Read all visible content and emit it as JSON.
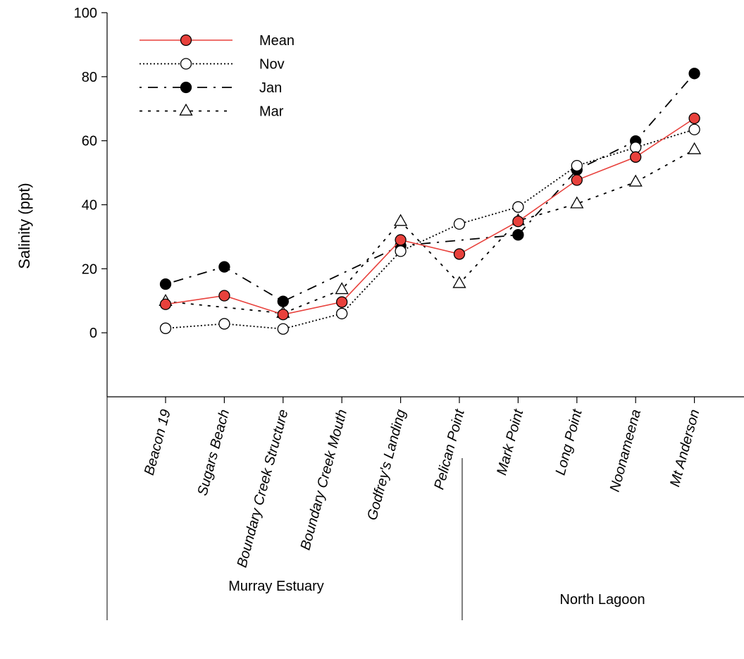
{
  "chart_data": {
    "type": "line",
    "ylabel": "Salinity (ppt)",
    "xlabel": "",
    "ylim": [
      -20,
      100
    ],
    "yticks": [
      0,
      20,
      40,
      60,
      80,
      100
    ],
    "categories": [
      "Beacon 19",
      "Sugars Beach",
      "Boundary Creek Structure",
      "Boundary Creek Mouth",
      "Godfrey's Landing",
      "Pelican Point",
      "Mark Point",
      "Long Point",
      "Noonameena",
      "Mt Anderson"
    ],
    "regions": [
      {
        "label": "Murray Estuary",
        "categories": [
          "Beacon 19",
          "Sugars Beach",
          "Boundary Creek Structure",
          "Boundary Creek Mouth",
          "Godfrey's Landing",
          "Pelican Point"
        ]
      },
      {
        "label": "North Lagoon",
        "categories": [
          "Mark Point",
          "Long Point",
          "Noonameena",
          "Mt Anderson"
        ]
      }
    ],
    "legend_position": "top-left",
    "series": [
      {
        "name": "Mean",
        "line": "solid",
        "marker": "filled-circle-red",
        "color": "#e8413c",
        "values": [
          8.9,
          11.6,
          5.7,
          9.6,
          29.0,
          24.6,
          34.8,
          47.7,
          54.9,
          67.0
        ]
      },
      {
        "name": "Nov",
        "line": "dotted",
        "marker": "open-circle",
        "color": "#000000",
        "values": [
          1.4,
          2.8,
          1.2,
          6.0,
          25.5,
          34.0,
          39.3,
          52.2,
          57.9,
          63.5
        ]
      },
      {
        "name": "Jan",
        "line": "dash-dot",
        "marker": "filled-circle-black",
        "color": "#000000",
        "values": [
          15.2,
          20.6,
          9.8,
          null,
          27.2,
          null,
          30.6,
          50.9,
          59.9,
          81.0
        ]
      },
      {
        "name": "Mar",
        "line": "short-dash",
        "marker": "open-triangle",
        "color": "#000000",
        "values": [
          9.8,
          null,
          6.1,
          13.5,
          34.8,
          15.4,
          35.0,
          40.3,
          47.1,
          57.2
        ]
      }
    ]
  }
}
